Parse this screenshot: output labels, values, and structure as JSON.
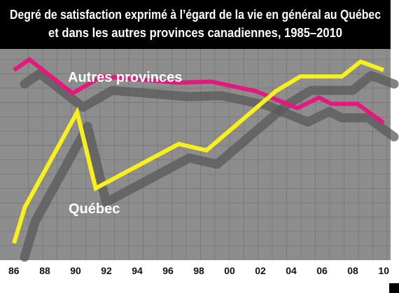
{
  "chart_data": {
    "type": "line",
    "title": "Degré de satisfaction exprimé à l’égard de la vie en général au Québec et dans les autres provinces canadiennes, 1985–2010",
    "title_lines": [
      "Degré de satisfaction exprimé à l’égard de la vie en général au Québec",
      "et dans les autres provinces canadiennes, 1985–2010"
    ],
    "xlabel": "",
    "ylabel": "",
    "x_ticks": [
      "86",
      "88",
      "90",
      "92",
      "94",
      "96",
      "98",
      "00",
      "02",
      "04",
      "06",
      "08",
      "10"
    ],
    "x_tick_values": [
      1986,
      1988,
      1990,
      1992,
      1994,
      1996,
      1998,
      2000,
      2002,
      2004,
      2006,
      2008,
      2010
    ],
    "xlim": [
      1986,
      2010
    ],
    "ylim": [
      0,
      100
    ],
    "grid": true,
    "series": [
      {
        "name": "Autres provinces",
        "color": "#e5197d",
        "x": [
          1986,
          1987,
          1989.8,
          1991.7,
          1996.7,
          1998.8,
          2001.7,
          2004.4,
          2005.8,
          2006.6,
          2008.3,
          2010
        ],
        "y": [
          90,
          95,
          79,
          87,
          84,
          84.5,
          80,
          72,
          77,
          74,
          74,
          65
        ]
      },
      {
        "name": "Québec",
        "color": "#f7f01c",
        "x": [
          1986,
          1986.7,
          1990.1,
          1991.3,
          1996.7,
          1998.5,
          2003,
          2004.6,
          2007.3,
          2008.5,
          2010
        ],
        "y": [
          8,
          25,
          70,
          34,
          55,
          52,
          80,
          87,
          87,
          94,
          90
        ]
      }
    ]
  },
  "colors": {
    "background": "#8d8d8d",
    "grid": "#7a7a7a",
    "title_background": "#000000",
    "title_text": "#ffffff",
    "tick_text": "#111111"
  }
}
